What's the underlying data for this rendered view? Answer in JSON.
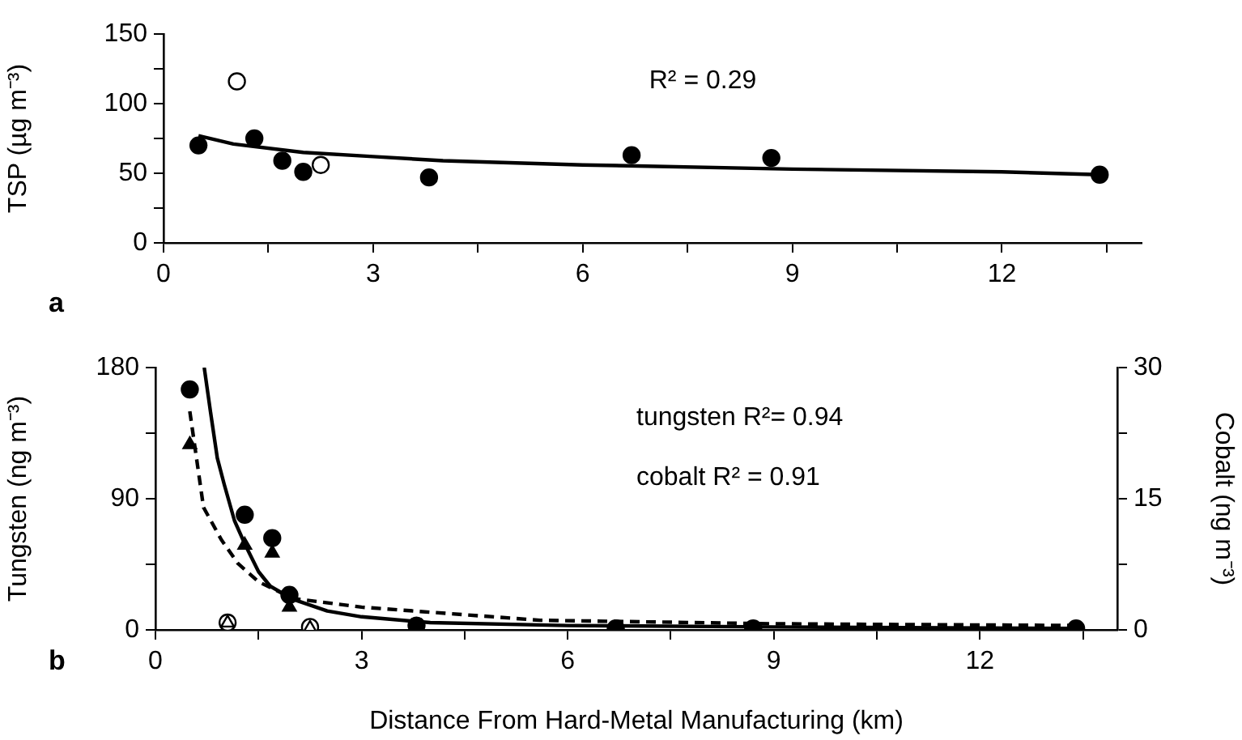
{
  "chart_data": [
    {
      "type": "scatter",
      "ylabel": "TSP (µg m⁻³)",
      "annotations": [
        "a",
        "R² = 0.29"
      ],
      "xlim": [
        0,
        14
      ],
      "xticks": [
        0,
        {
          "value": 1.5,
          "label": null
        },
        3,
        {
          "value": 4.5,
          "label": null
        },
        6,
        {
          "value": 7.5,
          "label": null
        },
        9,
        {
          "value": 10.5,
          "label": null
        },
        12,
        {
          "value": 13.5,
          "label": null
        }
      ],
      "ylim": [
        0,
        150
      ],
      "yticks": [
        0,
        {
          "value": 25,
          "label": null
        },
        50,
        {
          "value": 75,
          "label": null
        },
        100,
        {
          "value": 125,
          "label": null
        },
        150
      ],
      "grid": false,
      "legend": false,
      "series": [
        {
          "type": "scatter",
          "marker": "circle",
          "color": "#000000",
          "x": [
            0.5,
            1.3,
            1.7,
            2.0,
            3.8,
            6.7,
            8.7,
            13.4
          ],
          "values": [
            70,
            75,
            59,
            51,
            47,
            63,
            61,
            49
          ]
        },
        {
          "type": "scatter",
          "marker": "circle",
          "color": "#ffffff",
          "x": [
            1.05,
            2.25
          ],
          "values": [
            116,
            56
          ]
        },
        {
          "type": "line",
          "marker": "none",
          "line_style": "solid",
          "color": "#000000",
          "x": [
            0.5,
            1,
            2,
            3,
            4,
            6,
            9,
            12,
            13.4
          ],
          "values": [
            77,
            71,
            65,
            62,
            59,
            56,
            53,
            51,
            49
          ]
        }
      ]
    },
    {
      "type": "scatter",
      "xlabel": "Distance From Hard-Metal Manufacturing (km)",
      "ylabel": "Tungsten (ng m⁻³)",
      "y2label": "Cobalt (ng m⁻³)",
      "annotations": [
        "b",
        "tungsten R²= 0.94",
        "cobalt R² = 0.91"
      ],
      "xlim": [
        0,
        14
      ],
      "xticks": [
        0,
        {
          "value": 1.5,
          "label": null
        },
        3,
        {
          "value": 4.5,
          "label": null
        },
        6,
        {
          "value": 7.5,
          "label": null
        },
        9,
        {
          "value": 10.5,
          "label": null
        },
        12,
        {
          "value": 13.5,
          "label": null
        }
      ],
      "ylim": [
        0,
        180
      ],
      "yticks": [
        0,
        {
          "value": 45,
          "label": null
        },
        90,
        {
          "value": 135,
          "label": null
        },
        180
      ],
      "y2lim": [
        0,
        30
      ],
      "y2ticks": [
        0,
        {
          "value": 7.5,
          "label": null
        },
        15,
        {
          "value": 22.5,
          "label": null
        },
        30
      ],
      "grid": false,
      "legend": false,
      "series": [
        {
          "type": "line",
          "marker": "none",
          "line_style": "solid",
          "color": "#000000",
          "x": [
            0.71,
            0.8,
            0.9,
            1,
            1.15,
            1.31,
            1.5,
            1.67,
            2,
            2.5,
            3,
            4,
            6,
            9,
            13.4
          ],
          "values": [
            180,
            150,
            118,
            100,
            75,
            58,
            40,
            30,
            21,
            13,
            9,
            5,
            3,
            2,
            1
          ]
        },
        {
          "type": "line",
          "axis": "y2",
          "marker": "none",
          "line_style": "dashed",
          "color": "#000000",
          "x": [
            0.5,
            0.7,
            0.96,
            1.2,
            1.5,
            2,
            3,
            5.6,
            9,
            13.4
          ],
          "values": [
            25,
            14,
            10.3,
            7.6,
            5.5,
            3.6,
            2.6,
            1.1,
            0.7,
            0.5
          ]
        },
        {
          "type": "scatter",
          "marker": "circle",
          "color": "#000000",
          "x": [
            0.5,
            1.3,
            1.7,
            1.95,
            3.8,
            6.7,
            8.7,
            13.4
          ],
          "values": [
            165,
            79,
            63,
            24,
            3,
            1,
            1,
            1
          ]
        },
        {
          "type": "scatter",
          "axis": "y2",
          "marker": "triangle",
          "color": "#000000",
          "x": [
            0.5,
            1.3,
            1.7,
            1.95
          ],
          "values": [
            21.2,
            9.7,
            8.8,
            2.6
          ]
        },
        {
          "type": "scatter",
          "marker": "circle",
          "color": "#ffffff",
          "x": [
            1.05,
            2.25
          ],
          "values": [
            5,
            2
          ]
        },
        {
          "type": "scatter",
          "axis": "y2",
          "marker": "triangle",
          "color": "#ffffff",
          "x": [
            1.05,
            2.25
          ],
          "values": [
            0.8,
            0.2
          ]
        }
      ]
    }
  ]
}
